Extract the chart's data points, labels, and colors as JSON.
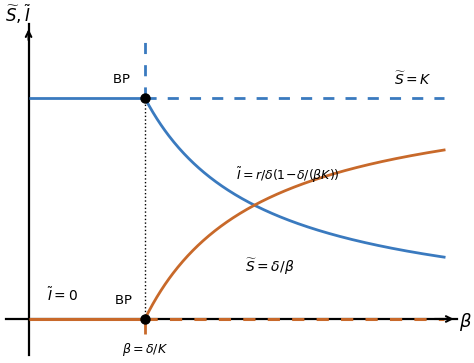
{
  "bg_color": "#ffffff",
  "blue_color": "#3a7abf",
  "orange_color": "#c8692a",
  "beta_bp": 0.28,
  "K_level": 0.8,
  "r_over_delta": 0.85,
  "xmin": 0.0,
  "xmax": 1.0,
  "ymin": 0.0,
  "ymax": 1.0
}
